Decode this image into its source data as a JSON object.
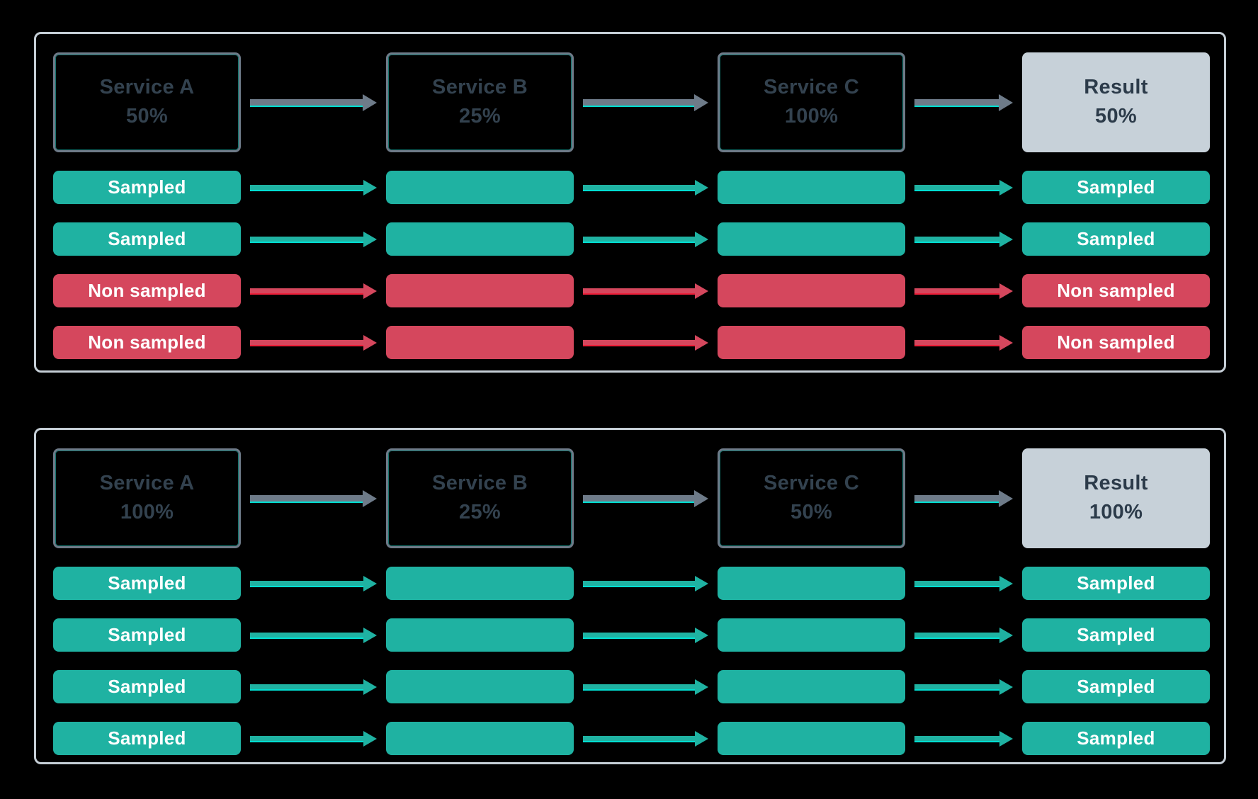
{
  "colors": {
    "background": "#000000",
    "panel_border": "#c5ced6",
    "box_border": "#6e7a88",
    "box_accent": "rgba(31,210,196,0.55)",
    "service_text": "#33424f",
    "result_bg": "#c7d1d9",
    "result_text": "#2c3b4a",
    "sampled": "#1fb2a2",
    "non_sampled": "#d5475d",
    "bar_text": "#ffffff",
    "arrow_gray": "#6e7b89",
    "accent_teal_bright": "#00dfd2",
    "accent_red_bright": "#ef1f39"
  },
  "panels": [
    {
      "nodes": [
        {
          "label": "Service A",
          "value": "50%",
          "type": "service"
        },
        {
          "label": "Service B",
          "value": "25%",
          "type": "service"
        },
        {
          "label": "Service C",
          "value": "100%",
          "type": "service"
        },
        {
          "label": "Result",
          "value": "50%",
          "type": "result"
        }
      ],
      "rows": [
        {
          "label": "Sampled",
          "status": "sampled"
        },
        {
          "label": "Sampled",
          "status": "sampled"
        },
        {
          "label": "Non sampled",
          "status": "non_sampled"
        },
        {
          "label": "Non sampled",
          "status": "non_sampled"
        }
      ]
    },
    {
      "nodes": [
        {
          "label": "Service A",
          "value": "100%",
          "type": "service"
        },
        {
          "label": "Service B",
          "value": "25%",
          "type": "service"
        },
        {
          "label": "Service C",
          "value": "50%",
          "type": "service"
        },
        {
          "label": "Result",
          "value": "100%",
          "type": "result"
        }
      ],
      "rows": [
        {
          "label": "Sampled",
          "status": "sampled"
        },
        {
          "label": "Sampled",
          "status": "sampled"
        },
        {
          "label": "Sampled",
          "status": "sampled"
        },
        {
          "label": "Sampled",
          "status": "sampled"
        }
      ]
    }
  ]
}
